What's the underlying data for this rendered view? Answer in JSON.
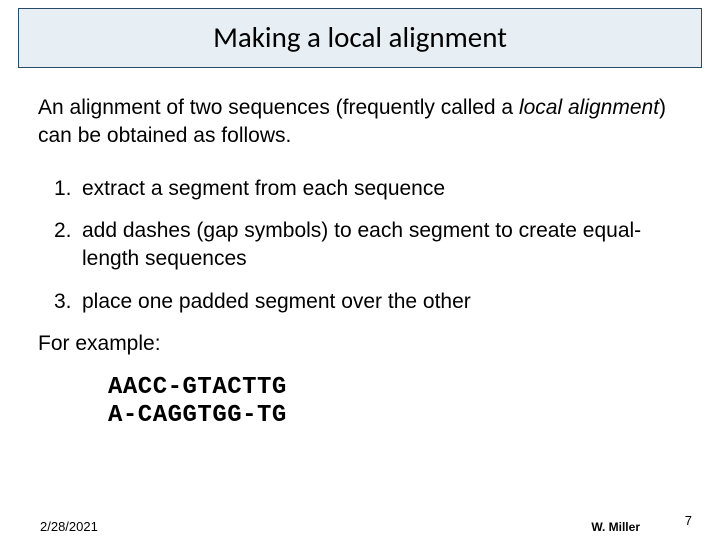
{
  "title": "Making a local alignment",
  "intro_parts": {
    "a": "An alignment of two sequences (frequently called a ",
    "b": "local alignment",
    "c": ") can be obtained as follows."
  },
  "steps": [
    {
      "num": "1.",
      "text": "extract a segment from each sequence"
    },
    {
      "num": "2.",
      "text": "add dashes (gap symbols) to each segment to create equal-length sequences"
    },
    {
      "num": "3.",
      "text": "place one padded segment over the other"
    }
  ],
  "for_example": "For example:",
  "sequences": {
    "line1": "AACC-GTACTTG",
    "line2": "A-CAGGTGG-TG"
  },
  "footer": {
    "date": "2/28/2021",
    "author": "W. Miller",
    "page": "7"
  },
  "colors": {
    "title_bg": "#e8eff4",
    "title_border": "#2a4a6a",
    "text": "#000000",
    "background": "#ffffff"
  }
}
